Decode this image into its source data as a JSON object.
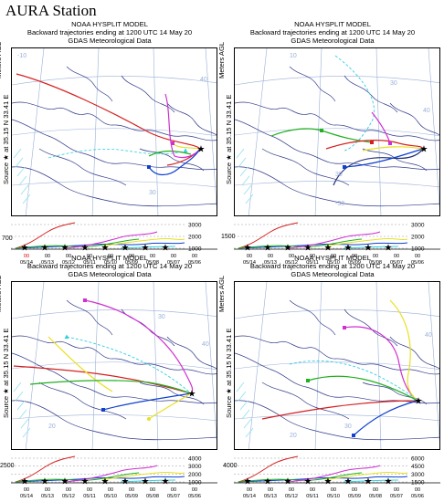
{
  "figure_title": "AURA Station",
  "panels": [
    {
      "model": "NOAA HYSPLIT MODEL",
      "title": "Backward trajectories ending at 1200 UTC 14 May 20",
      "data": "GDAS Meteorological Data",
      "start_height": "700",
      "levels": [
        "3000",
        "2000",
        "1000"
      ],
      "hours": [
        "00",
        "00",
        "00",
        "00",
        "00",
        "00",
        "00",
        "00",
        "00"
      ],
      "dates": [
        "05/14",
        "05/13",
        "05/12",
        "05/11",
        "05/10",
        "05/09",
        "05/08",
        "05/07",
        "05/06"
      ],
      "first_hour_red": true
    },
    {
      "model": "NOAA HYSPLIT MODEL",
      "title": "Backward trajectories ending at 1200 UTC 14 May 20",
      "data": "GDAS Meteorological Data",
      "start_height": "1500",
      "levels": [
        "3000",
        "2000",
        "1000"
      ],
      "hours": [
        "00",
        "00",
        "00",
        "00",
        "00",
        "00",
        "00",
        "00",
        "00"
      ],
      "dates": [
        "05/14",
        "05/13",
        "05/12",
        "05/11",
        "05/10",
        "05/09",
        "05/08",
        "05/07",
        "05/06"
      ],
      "first_hour_red": false
    },
    {
      "model": "NOAA HYSPLIT MODEL",
      "title": "Backward trajectories ending at 1200 UTC 14 May 20",
      "data": "GDAS Meteorological Data",
      "start_height": "2500",
      "levels": [
        "4000",
        "3000",
        "2000",
        "1000"
      ],
      "hours": [
        "00",
        "00",
        "00",
        "00",
        "00",
        "00",
        "00",
        "00",
        "00"
      ],
      "dates": [
        "05/14",
        "05/13",
        "05/12",
        "05/11",
        "05/10",
        "05/09",
        "05/08",
        "05/07",
        "05/06"
      ],
      "first_hour_red": false
    },
    {
      "model": "NOAA HYSPLIT MODEL",
      "title": "Backward trajectories ending at 1200 UTC 14 May 20",
      "data": "GDAS Meteorological Data",
      "start_height": "4000",
      "levels": [
        "6000",
        "4500",
        "3000",
        "1500"
      ],
      "hours": [
        "00",
        "00",
        "00",
        "00",
        "00",
        "00",
        "00",
        "00",
        "00"
      ],
      "dates": [
        "05/14",
        "05/13",
        "05/12",
        "05/11",
        "05/10",
        "05/09",
        "05/08",
        "05/07",
        "05/06"
      ],
      "first_hour_red": false
    }
  ],
  "source_label": "Source ★ at  35.15 N   33.41 E",
  "agl_label": "Meters AGL",
  "grid_labels": {
    "p0": [
      "-10",
      "30",
      "40"
    ],
    "p1": [
      "30",
      "30",
      "-30",
      "40",
      "10"
    ],
    "p2": [
      "20",
      "30",
      "40"
    ],
    "p3": [
      "20",
      "30",
      "40"
    ]
  },
  "colors": {
    "red": "#d62020",
    "blue": "#1040d0",
    "green": "#20b020",
    "cyan": "#30d0e0",
    "magenta": "#d030d0",
    "yellow": "#e8e020",
    "navy": "#203070",
    "border": "#303a8a",
    "grid": "#9ab0d8"
  }
}
